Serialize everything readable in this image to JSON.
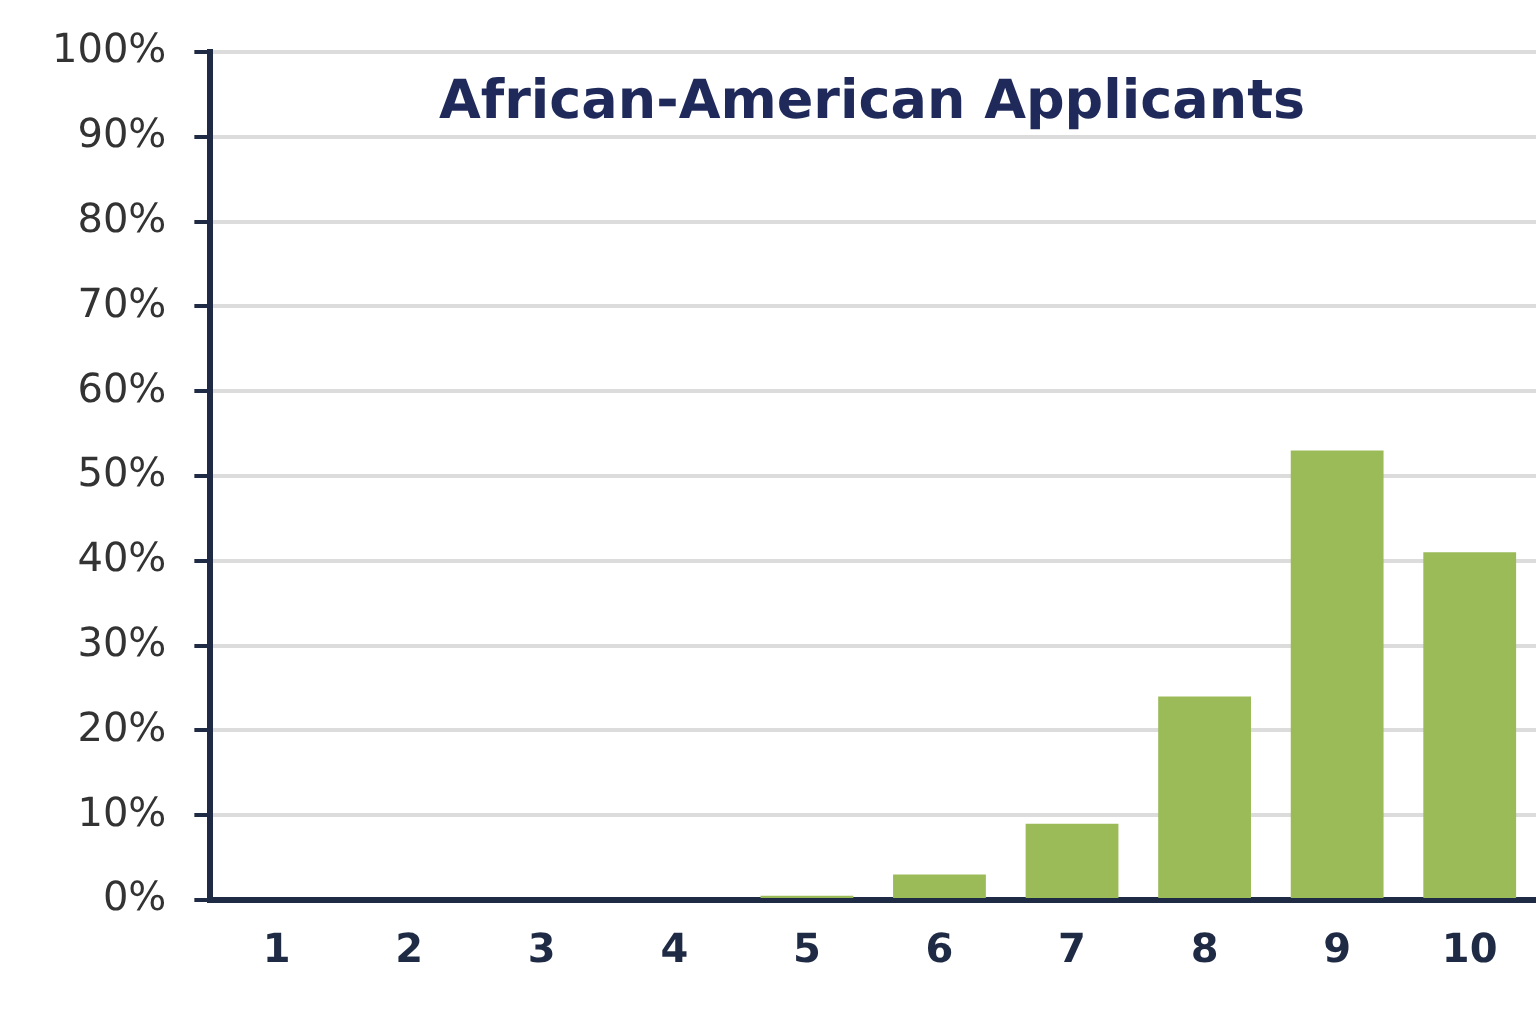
{
  "chart_data": {
    "type": "bar",
    "title": "African-American Applicants",
    "categories": [
      "1",
      "2",
      "3",
      "4",
      "5",
      "6",
      "7",
      "8",
      "9",
      "10"
    ],
    "values": [
      null,
      null,
      null,
      null,
      0.5,
      3,
      9,
      24,
      53,
      41
    ],
    "color": "#9bbb59",
    "ylim": [
      0,
      100
    ],
    "yticks": [
      {
        "value": 0,
        "label": "0%"
      },
      {
        "value": 10,
        "label": "10%"
      },
      {
        "value": 20,
        "label": "20%"
      },
      {
        "value": 30,
        "label": "30%"
      },
      {
        "value": 40,
        "label": "40%"
      },
      {
        "value": 50,
        "label": "50%"
      },
      {
        "value": 60,
        "label": "60%"
      },
      {
        "value": 70,
        "label": "70%"
      },
      {
        "value": 80,
        "label": "80%"
      },
      {
        "value": 90,
        "label": "90%"
      },
      {
        "value": 100,
        "label": "100%"
      }
    ],
    "grid": "y",
    "legend": false
  }
}
